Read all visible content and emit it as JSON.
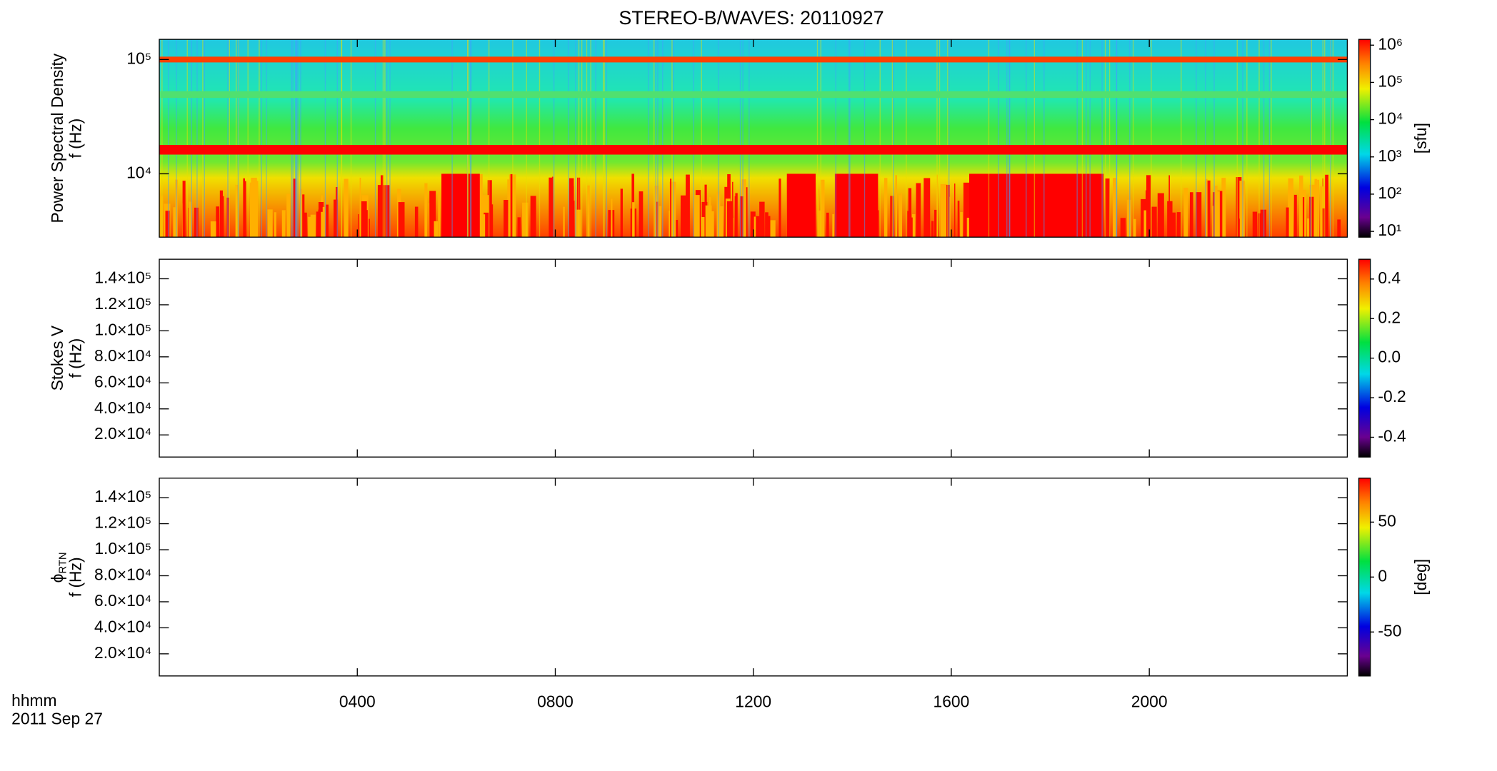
{
  "chart_data": {
    "type": "spectrogram",
    "title": "STEREO-B/WAVES: 20110927",
    "xlabel": "hhmm",
    "date": "2011 Sep 27",
    "xlim": [
      0,
      24
    ],
    "xticks": [
      {
        "value": 4,
        "label": "0400"
      },
      {
        "value": 8,
        "label": "0800"
      },
      {
        "value": 12,
        "label": "1200"
      },
      {
        "value": 16,
        "label": "1600"
      },
      {
        "value": 20,
        "label": "2000"
      }
    ],
    "panels": [
      {
        "ylabel": [
          "Power Spectral Density",
          "f (Hz)"
        ],
        "log": true,
        "ylim": [
          2790,
          150000
        ],
        "yticks": [
          {
            "value": 10000,
            "label": "10⁴"
          },
          {
            "value": 100000,
            "label": "10⁵"
          }
        ],
        "colorbar": {
          "log": true,
          "lim": [
            7,
            1430000
          ],
          "label": "[sfu]",
          "ticks": [
            {
              "value": 10,
              "label": "10¹"
            },
            {
              "value": 100,
              "label": "10²"
            },
            {
              "value": 1000,
              "label": "10³"
            },
            {
              "value": 10000,
              "label": "10⁴"
            },
            {
              "value": 100000,
              "label": "10⁵"
            },
            {
              "value": 1000000,
              "label": "10⁶"
            }
          ]
        }
      },
      {
        "ylabel": [
          "Stokes V",
          "f (Hz)"
        ],
        "log": false,
        "ylim": [
          3000,
          155000
        ],
        "yticks": [
          {
            "value": 20000,
            "label": "2.0×10⁴"
          },
          {
            "value": 40000,
            "label": "4.0×10⁴"
          },
          {
            "value": 60000,
            "label": "6.0×10⁴"
          },
          {
            "value": 80000,
            "label": "8.0×10⁴"
          },
          {
            "value": 100000,
            "label": "1.0×10⁵"
          },
          {
            "value": 120000,
            "label": "1.2×10⁵"
          },
          {
            "value": 140000,
            "label": "1.4×10⁵"
          }
        ],
        "colorbar": {
          "log": false,
          "lim": [
            -0.5,
            0.5
          ],
          "ticks": [
            -0.4,
            -0.2,
            {
              "value": 0,
              "label": "0.0"
            },
            0.2,
            0.4
          ]
        }
      },
      {
        "ylabel": [
          "f (Hz)"
        ],
        "ylabel_symbol": "ϕ",
        "ylabel_subscript": "RTN",
        "log": false,
        "ylim": [
          3000,
          155000
        ],
        "yticks": [
          {
            "value": 20000,
            "label": "2.0×10⁴"
          },
          {
            "value": 40000,
            "label": "4.0×10⁴"
          },
          {
            "value": 60000,
            "label": "6.0×10⁴"
          },
          {
            "value": 80000,
            "label": "8.0×10⁴"
          },
          {
            "value": 100000,
            "label": "1.0×10⁵"
          },
          {
            "value": 120000,
            "label": "1.2×10⁵"
          },
          {
            "value": 140000,
            "label": "1.4×10⁵"
          }
        ],
        "colorbar": {
          "log": false,
          "lim": [
            -90,
            90
          ],
          "label": "[deg]",
          "ticks": [
            -50,
            0,
            50
          ]
        }
      }
    ]
  }
}
